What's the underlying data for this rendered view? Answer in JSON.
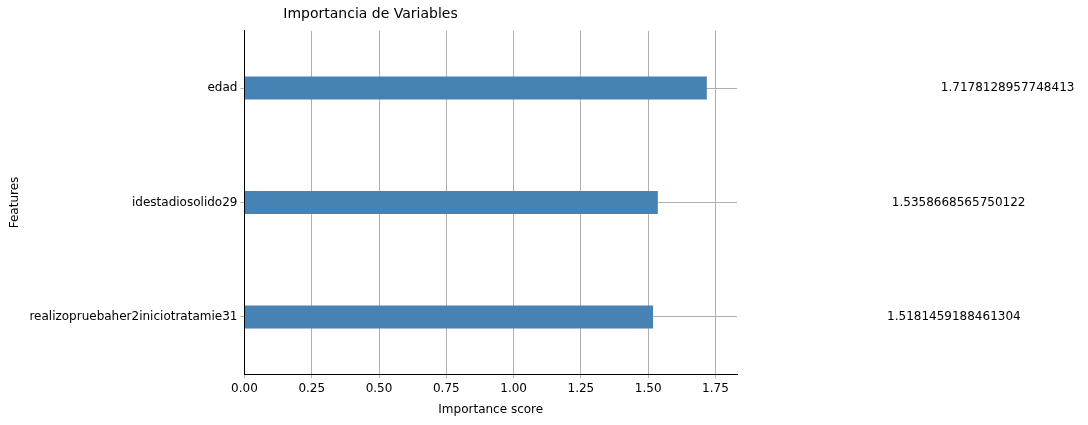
{
  "chart_data": {
    "type": "bar",
    "orientation": "horizontal",
    "title": "Importancia de Variables",
    "xlabel": "Importance score",
    "ylabel": "Features",
    "categories": [
      "edad",
      "idestadiosolido29",
      "realizopruebaher2iniciotratamie31"
    ],
    "values": [
      1.7178128957748413,
      1.5358668565750122,
      1.5181459188461304
    ],
    "color": "#4682b4",
    "annotations": [
      "1.7178128957748413",
      "1.5358668565750122",
      "1.5181459188461304"
    ],
    "xlim": [
      0,
      1.83
    ],
    "xticks": [
      {
        "value": 0,
        "label": "0.00"
      },
      {
        "value": 0.25,
        "label": "0.25"
      },
      {
        "value": 0.5,
        "label": "0.50"
      },
      {
        "value": 0.75,
        "label": "0.75"
      },
      {
        "value": 1,
        "label": "1.00"
      },
      {
        "value": 1.25,
        "label": "1.25"
      },
      {
        "value": 1.5,
        "label": "1.50"
      },
      {
        "value": 1.75,
        "label": "1.75"
      }
    ],
    "grid": true,
    "legend": false
  }
}
